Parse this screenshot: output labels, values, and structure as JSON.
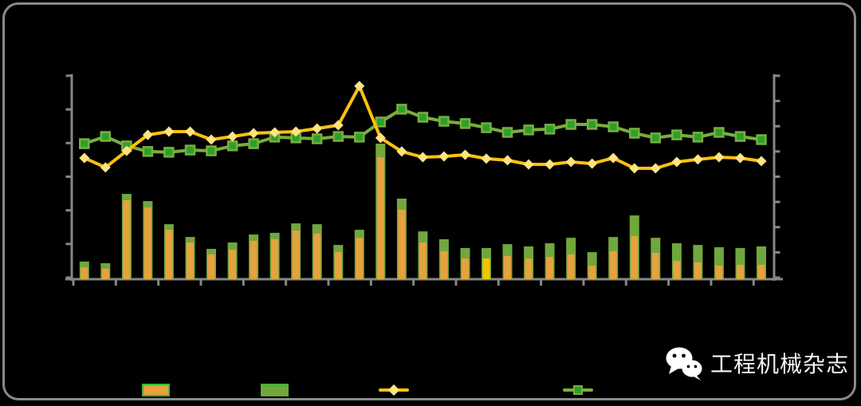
{
  "frame": {
    "background": "#000000",
    "border_color": "#8a8a8a"
  },
  "colors": {
    "axis": "#868686",
    "bar_orange": "#e5a23e",
    "bar_highlight_yellow": "#f2c500",
    "bar_green": "#70a73e",
    "line_yellow": "#fdc10e",
    "marker_yellow": "#fee37f",
    "line_green": "#7aad3e",
    "marker_green": "#2aa12c",
    "watermark_text": "#f5f5f5"
  },
  "chart_data": {
    "type": "combo-bar-line",
    "title_visible": false,
    "x_count": 33,
    "x_axis": {
      "tick_count": 17,
      "labels_visible": false
    },
    "y_axis_left": {
      "tick_count": 7,
      "labels_visible": false
    },
    "y_axis_right": {
      "tick_count": 9,
      "labels_visible": false
    },
    "note": "axis labels, title and legend captions are rendered in black on black background and are not visible; values below are percent of plot height",
    "series": [
      {
        "id": "bar-green-total",
        "type": "bar",
        "color": "#70a73e",
        "values_pct": [
          8.6,
          7.8,
          41.6,
          38.1,
          26.8,
          20.6,
          14.8,
          17.9,
          21.8,
          22.6,
          27.2,
          26.8,
          16.7,
          24.1,
          66.1,
          39.3,
          23.3,
          19.5,
          15.2,
          15.2,
          17.1,
          16.0,
          17.5,
          20.2,
          13.2,
          20.6,
          31.1,
          20.2,
          17.5,
          16.7,
          15.6,
          15.2,
          16.0
        ]
      },
      {
        "id": "bar-orange-inner",
        "type": "bar",
        "color": "#e5a23e",
        "highlight_index": 19,
        "highlight_color": "#f2c500",
        "values_pct": [
          5.8,
          5.1,
          38.5,
          35.0,
          24.1,
          17.9,
          12.1,
          14.4,
          18.7,
          19.5,
          23.7,
          22.2,
          13.2,
          20.2,
          59.5,
          33.9,
          17.9,
          13.6,
          10.1,
          10.1,
          11.3,
          10.1,
          10.9,
          12.1,
          6.6,
          13.6,
          21.0,
          12.8,
          8.9,
          8.2,
          6.6,
          7.0,
          7.0
        ]
      },
      {
        "id": "line-green",
        "type": "line",
        "color": "#7aad3e",
        "marker": "square",
        "marker_color": "#2aa12c",
        "values_pct": [
          66.1,
          69.6,
          65.0,
          62.3,
          61.9,
          63.0,
          62.6,
          65.0,
          66.1,
          69.3,
          68.9,
          68.5,
          69.6,
          69.3,
          76.7,
          82.9,
          79.0,
          77.0,
          75.9,
          73.9,
          71.6,
          72.8,
          73.2,
          75.5,
          75.5,
          74.3,
          71.2,
          68.9,
          70.4,
          69.3,
          71.6,
          69.6,
          68.1
        ]
      },
      {
        "id": "line-yellow",
        "type": "line",
        "color": "#fdc10e",
        "marker": "diamond",
        "marker_color": "#fee37f",
        "values_pct": [
          59.1,
          54.5,
          62.6,
          70.4,
          72.0,
          72.0,
          68.1,
          69.6,
          71.2,
          71.6,
          72.0,
          73.5,
          75.1,
          94.2,
          68.9,
          62.3,
          59.5,
          59.9,
          60.7,
          58.8,
          58.0,
          56.0,
          56.0,
          57.2,
          56.4,
          59.1,
          54.1,
          54.1,
          57.2,
          58.4,
          59.5,
          59.1,
          57.6
        ]
      }
    ]
  },
  "legend": {
    "items": [
      {
        "icon": "orange-bar-swatch"
      },
      {
        "icon": "green-bar-swatch"
      },
      {
        "icon": "yellow-line-diamond-marker"
      },
      {
        "icon": "green-line-square-marker"
      }
    ],
    "labels_visible": false
  },
  "watermark": {
    "text": "工程机械杂志",
    "icon": "wechat-icon"
  }
}
